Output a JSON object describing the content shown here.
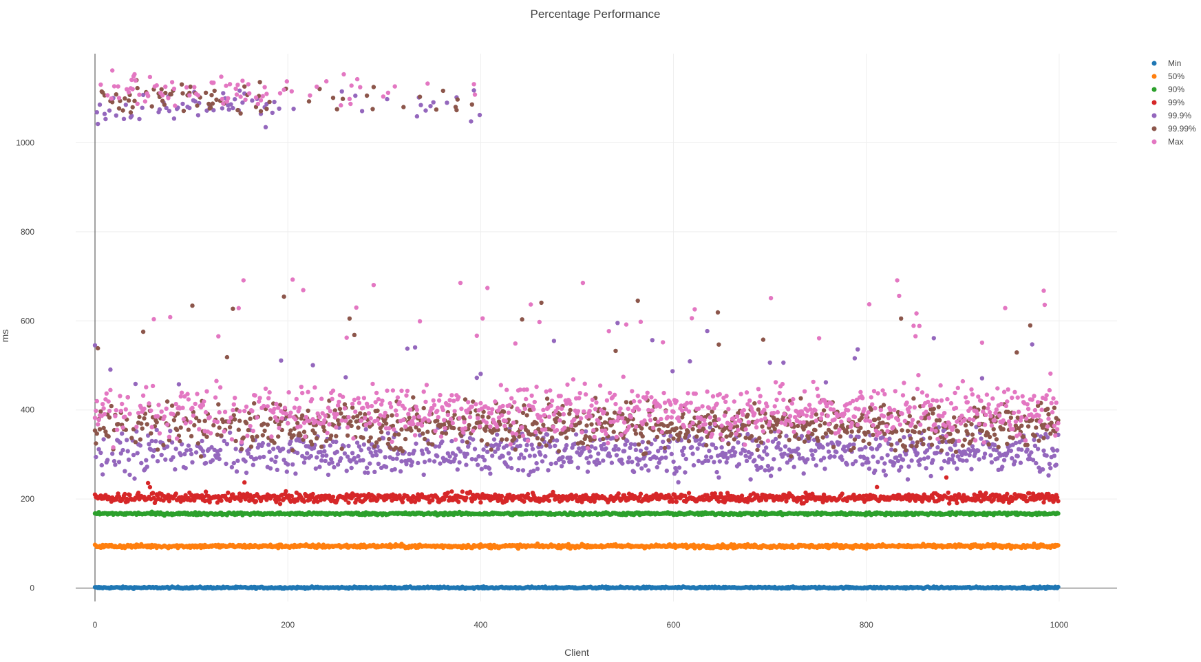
{
  "chart_data": {
    "type": "scatter",
    "title": "Percentage Performance",
    "xlabel": "Client",
    "ylabel": "ms",
    "xlim": [
      -20,
      1060
    ],
    "ylim": [
      -30,
      1200
    ],
    "xticks": [
      0,
      200,
      400,
      600,
      800,
      1000
    ],
    "yticks": [
      0,
      200,
      400,
      600,
      800,
      1000
    ],
    "grid": true,
    "legend_position": "top-right",
    "x_points": 1000,
    "series": [
      {
        "name": "Min",
        "color": "#1f77b4",
        "typical_value": 1,
        "spread": 1
      },
      {
        "name": "50%",
        "color": "#ff7f0e",
        "typical_value": 94,
        "spread": 2
      },
      {
        "name": "90%",
        "color": "#2ca02c",
        "typical_value": 167,
        "spread": 1.5
      },
      {
        "name": "99%",
        "color": "#d62728",
        "typical_value": 203,
        "spread": 5
      },
      {
        "name": "99.9%",
        "color": "#9467bd",
        "typical_value": 305,
        "spread": 25
      },
      {
        "name": "99.99%",
        "color": "#8c564b",
        "typical_value": 365,
        "spread": 25
      },
      {
        "name": "Max",
        "color": "#e377c2",
        "typical_value": 395,
        "spread": 30
      }
    ]
  }
}
